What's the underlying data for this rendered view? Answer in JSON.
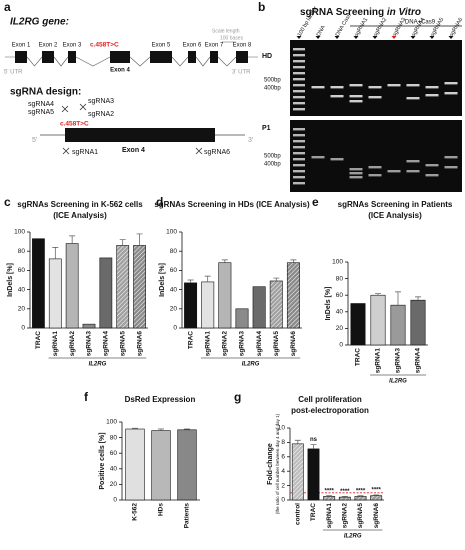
{
  "gene_diagram": {
    "letter": "a",
    "title": "IL2RG gene:",
    "scale_label": [
      "Scale length",
      "100 bases"
    ],
    "exons": [
      "Exon 1",
      "Exon 2",
      "Exon 3",
      "Exon 4",
      "Exon 5",
      "Exon 6",
      "Exon 7",
      "Exon 8"
    ],
    "mutation": "c.458T>C",
    "utr5": "5' UTR",
    "utr3": "3' UTR"
  },
  "sgrna_design": {
    "title": "sgRNA design:",
    "guides": [
      "sgRNA4",
      "sgRNA5",
      "sgRNA3",
      "sgRNA2",
      "sgRNA1",
      "sgRNA6"
    ],
    "mutation": "c.458T>C",
    "exon": "Exon 4",
    "end5": "5'",
    "end3": "3'"
  },
  "gel": {
    "letter": "b",
    "title": "sgRNA Screening ",
    "title_italic": "in Vitro",
    "lanes": [
      "100 bp ladder",
      "DNA",
      "DNA Cas9",
      "sgRNA1",
      "sgRNA2",
      "sgRNA3",
      "sgRNA4",
      "sgRNA5",
      "sgRNA6"
    ],
    "group": "DNA+Cas9",
    "rows": [
      "HD",
      "P1"
    ],
    "markers": [
      "500bp",
      "400bp"
    ]
  },
  "chart_data": [
    {
      "type": "bar",
      "letter": "c",
      "title": "sgRNAs Screening in K-562 cells",
      "subtitle": "(ICE Analysis)",
      "y_label": [
        "InDels [%]"
      ],
      "group_label": "IL2RG",
      "categories": [
        "TRAC",
        "sgRNA1",
        "sgRNA2",
        "sgRNA3",
        "sgRNA4",
        "sgRNA5",
        "sgRNA6"
      ],
      "values": [
        93,
        72,
        88,
        4,
        73,
        86,
        86
      ],
      "errors": [
        0,
        12,
        8,
        0,
        0,
        6,
        12
      ],
      "colors": [
        "#111111",
        "#e2e2e2",
        "#b5b5b5",
        "#8a8a8a",
        "#6a6a6a",
        "#a0a0a0",
        "#8a8a8a"
      ],
      "fill_styles": [
        "solid",
        "solid",
        "solid",
        "solid",
        "solid",
        "hatched",
        "hatched"
      ],
      "ylim": [
        0,
        100
      ],
      "yticks": [
        0,
        20,
        40,
        60,
        80,
        100
      ]
    },
    {
      "type": "bar",
      "letter": "d",
      "title": "sgRNAs Screening in HDs (ICE Analysis)",
      "y_label": [
        "InDels [%]"
      ],
      "group_label": "IL2RG",
      "categories": [
        "TRAC",
        "sgRNA1",
        "sgRNA2",
        "sgRNA3",
        "sgRNA4",
        "sgRNA5",
        "sgRNA6"
      ],
      "values": [
        47,
        48,
        68,
        20,
        43,
        49,
        68
      ],
      "errors": [
        3,
        6,
        3,
        0,
        0,
        3,
        3
      ],
      "colors": [
        "#111111",
        "#e2e2e2",
        "#b5b5b5",
        "#8a8a8a",
        "#6a6a6a",
        "#a0a0a0",
        "#8a8a8a"
      ],
      "fill_styles": [
        "solid",
        "solid",
        "solid",
        "solid",
        "solid",
        "hatched",
        "hatched"
      ],
      "ylim": [
        0,
        100
      ],
      "yticks": [
        0,
        20,
        40,
        60,
        80,
        100
      ]
    },
    {
      "type": "bar",
      "letter": "e",
      "title": "sgRNAs Screening in Patients",
      "subtitle": "(ICE Analysis)",
      "y_label": [
        "InDels [%]"
      ],
      "group_label": "IL2RG",
      "categories": [
        "TRAC",
        "sgRNA1",
        "sgRNA3",
        "sgRNA4"
      ],
      "values": [
        50,
        60,
        48,
        54
      ],
      "errors": [
        0,
        2,
        16,
        4
      ],
      "colors": [
        "#111111",
        "#cfcfcf",
        "#9a9a9a",
        "#6a6a6a"
      ],
      "fill_styles": [
        "solid",
        "solid",
        "solid",
        "solid"
      ],
      "ylim": [
        0,
        100
      ],
      "yticks": [
        0,
        20,
        40,
        60,
        80,
        100
      ]
    },
    {
      "type": "bar",
      "letter": "f",
      "title": "DsRed Expression",
      "y_label": [
        "Positive cells [%]"
      ],
      "categories": [
        "K-562",
        "HDs",
        "Patients"
      ],
      "values": [
        91,
        89,
        90
      ],
      "errors": [
        1,
        2,
        1
      ],
      "colors": [
        "#e0e0e0",
        "#b8b8b8",
        "#888888"
      ],
      "fill_styles": [
        "solid",
        "solid",
        "solid"
      ],
      "ylim": [
        0,
        100
      ],
      "yticks": [
        0,
        20,
        40,
        60,
        80,
        100
      ]
    },
    {
      "type": "bar",
      "letter": "g",
      "title": "Cell proliferation",
      "subtitle": "post-electroporation",
      "y_label": [
        "Fold-change",
        "(the ratio of cell number between day 4 and day 1)"
      ],
      "group_label": "IL2RG",
      "categories": [
        "control",
        "TRAC",
        "sgRNA1",
        "sgRNA2",
        "sgRNA5",
        "sgRNA6"
      ],
      "values": [
        7.8,
        7.1,
        0.5,
        0.4,
        0.5,
        0.6
      ],
      "errors": [
        0.5,
        0.6,
        0.1,
        0.1,
        0.1,
        0.1
      ],
      "colors": [
        "#bdbdbd",
        "#111111",
        "#9a9a9a",
        "#9a9a9a",
        "#9a9a9a",
        "#9a9a9a"
      ],
      "fill_styles": [
        "hatched",
        "solid",
        "hatched",
        "hatched",
        "hatched",
        "hatched"
      ],
      "value_annotations": [
        null,
        "ns",
        "****",
        "****",
        "****",
        "****"
      ],
      "reference_line": 1,
      "reference_color": "#e02020",
      "ylim": [
        0,
        10
      ],
      "yticks": [
        0,
        2,
        4,
        6,
        8,
        10
      ]
    }
  ]
}
